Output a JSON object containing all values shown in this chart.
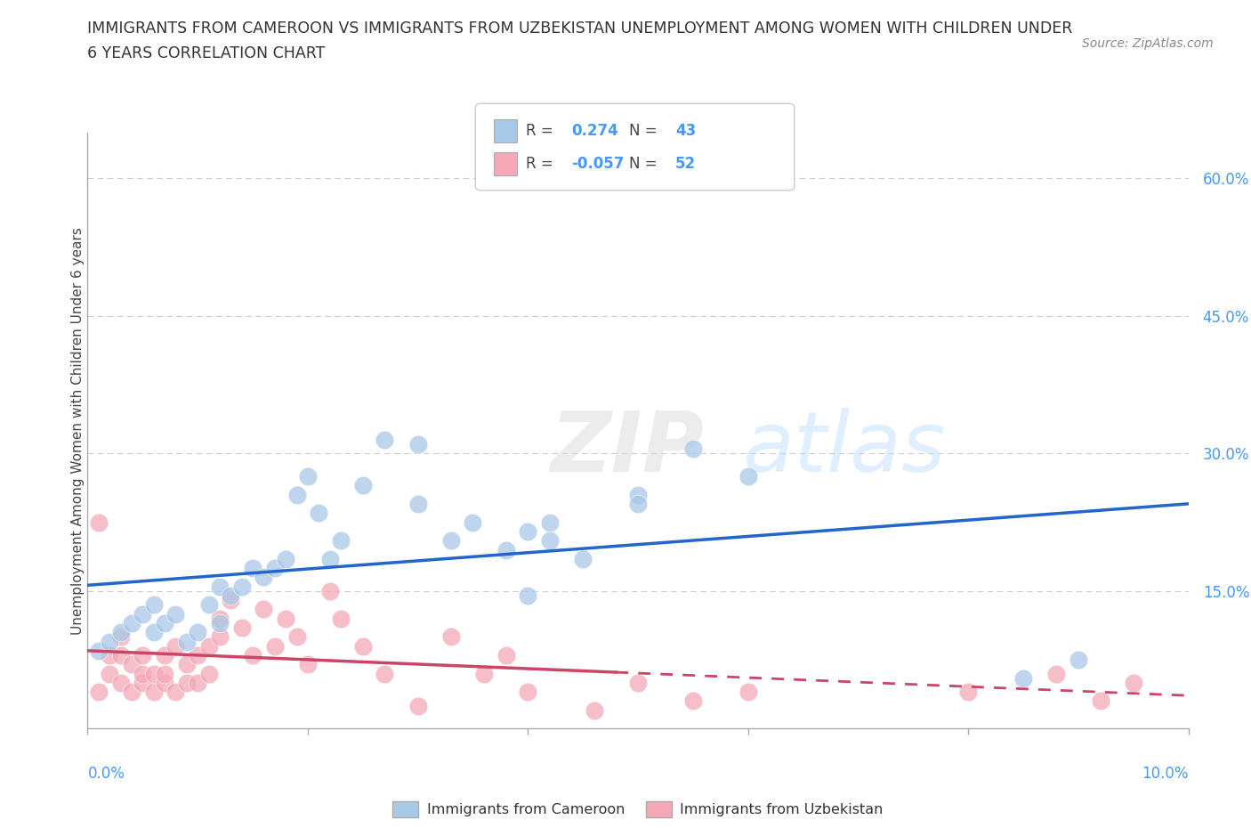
{
  "title_line1": "IMMIGRANTS FROM CAMEROON VS IMMIGRANTS FROM UZBEKISTAN UNEMPLOYMENT AMONG WOMEN WITH CHILDREN UNDER",
  "title_line2": "6 YEARS CORRELATION CHART",
  "source": "Source: ZipAtlas.com",
  "ylabel": "Unemployment Among Women with Children Under 6 years",
  "xlim": [
    0.0,
    0.1
  ],
  "ylim": [
    0.0,
    0.65
  ],
  "ytick_labels": [
    "15.0%",
    "30.0%",
    "45.0%",
    "60.0%"
  ],
  "ytick_values": [
    0.15,
    0.3,
    0.45,
    0.6
  ],
  "xtick_values": [
    0.0,
    0.02,
    0.04,
    0.06,
    0.08,
    0.1
  ],
  "r_cameroon": 0.274,
  "n_cameroon": 43,
  "r_uzbekistan": -0.057,
  "n_uzbekistan": 52,
  "watermark_zip": "ZIP",
  "watermark_atlas": "atlas",
  "blue_color": "#a8c8e8",
  "pink_color": "#f4a8b8",
  "trend_blue": "#2266cc",
  "trend_pink": "#cc4466",
  "cameroon_x": [
    0.001,
    0.002,
    0.003,
    0.004,
    0.005,
    0.006,
    0.006,
    0.007,
    0.008,
    0.009,
    0.01,
    0.011,
    0.012,
    0.012,
    0.013,
    0.014,
    0.015,
    0.016,
    0.017,
    0.018,
    0.019,
    0.02,
    0.021,
    0.022,
    0.023,
    0.025,
    0.027,
    0.03,
    0.033,
    0.035,
    0.038,
    0.04,
    0.042,
    0.03,
    0.045,
    0.05,
    0.04,
    0.042,
    0.05,
    0.055,
    0.06,
    0.085,
    0.09
  ],
  "cameroon_y": [
    0.085,
    0.095,
    0.105,
    0.115,
    0.125,
    0.135,
    0.105,
    0.115,
    0.125,
    0.095,
    0.105,
    0.135,
    0.155,
    0.115,
    0.145,
    0.155,
    0.175,
    0.165,
    0.175,
    0.185,
    0.255,
    0.275,
    0.235,
    0.185,
    0.205,
    0.265,
    0.315,
    0.245,
    0.205,
    0.225,
    0.195,
    0.215,
    0.205,
    0.31,
    0.185,
    0.255,
    0.145,
    0.225,
    0.245,
    0.305,
    0.275,
    0.055,
    0.075
  ],
  "uzbekistan_x": [
    0.001,
    0.001,
    0.002,
    0.002,
    0.003,
    0.003,
    0.003,
    0.004,
    0.004,
    0.005,
    0.005,
    0.005,
    0.006,
    0.006,
    0.007,
    0.007,
    0.007,
    0.008,
    0.008,
    0.009,
    0.009,
    0.01,
    0.01,
    0.011,
    0.011,
    0.012,
    0.012,
    0.013,
    0.014,
    0.015,
    0.016,
    0.017,
    0.018,
    0.019,
    0.02,
    0.022,
    0.023,
    0.025,
    0.027,
    0.03,
    0.033,
    0.036,
    0.038,
    0.04,
    0.046,
    0.05,
    0.055,
    0.06,
    0.08,
    0.088,
    0.092,
    0.095
  ],
  "uzbekistan_y": [
    0.225,
    0.04,
    0.06,
    0.08,
    0.05,
    0.08,
    0.1,
    0.04,
    0.07,
    0.05,
    0.06,
    0.08,
    0.04,
    0.06,
    0.05,
    0.08,
    0.06,
    0.04,
    0.09,
    0.05,
    0.07,
    0.05,
    0.08,
    0.06,
    0.09,
    0.12,
    0.1,
    0.14,
    0.11,
    0.08,
    0.13,
    0.09,
    0.12,
    0.1,
    0.07,
    0.15,
    0.12,
    0.09,
    0.06,
    0.025,
    0.1,
    0.06,
    0.08,
    0.04,
    0.02,
    0.05,
    0.03,
    0.04,
    0.04,
    0.06,
    0.03,
    0.05
  ]
}
